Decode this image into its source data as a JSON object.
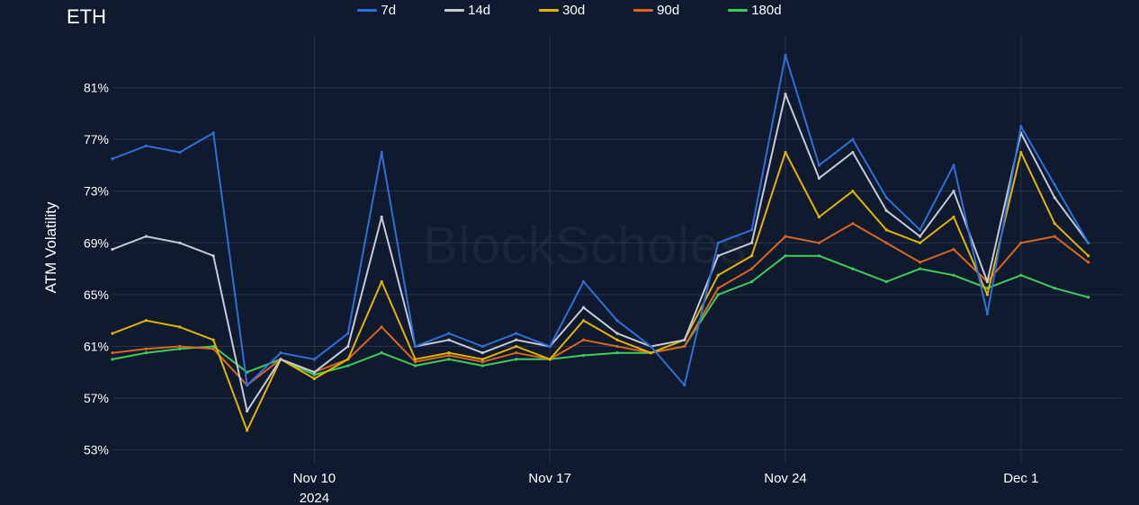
{
  "chart_data": {
    "type": "line",
    "title": "ETH",
    "ylabel": "ATM Volatility",
    "xlabel": "",
    "watermark": "BlockScholes",
    "ylim": [
      52,
      85
    ],
    "yticks": [
      53,
      57,
      61,
      65,
      69,
      73,
      77,
      81
    ],
    "ytick_labels": [
      "53%",
      "57%",
      "61%",
      "65%",
      "69%",
      "73%",
      "77%",
      "81%"
    ],
    "xlim": [
      "2024-11-04",
      "2024-12-04"
    ],
    "xticks": [
      "2024-11-10",
      "2024-11-17",
      "2024-11-24",
      "2024-12-01"
    ],
    "xtick_labels": [
      "Nov 10",
      "Nov 17",
      "Nov 24",
      "Dec 1"
    ],
    "xtick_year_label": "2024",
    "grid": true,
    "legend_position": "top-center",
    "series": [
      {
        "name": "7d",
        "color": "#2f6fd9",
        "x": [
          "2024-11-04",
          "2024-11-05",
          "2024-11-06",
          "2024-11-07",
          "2024-11-08",
          "2024-11-09",
          "2024-11-10",
          "2024-11-11",
          "2024-11-12",
          "2024-11-13",
          "2024-11-14",
          "2024-11-15",
          "2024-11-16",
          "2024-11-17",
          "2024-11-18",
          "2024-11-19",
          "2024-11-20",
          "2024-11-21",
          "2024-11-22",
          "2024-11-23",
          "2024-11-24",
          "2024-11-25",
          "2024-11-26",
          "2024-11-27",
          "2024-11-28",
          "2024-11-29",
          "2024-11-30",
          "2024-12-01",
          "2024-12-02",
          "2024-12-03"
        ],
        "values": [
          75.5,
          76.5,
          76.0,
          77.5,
          58.0,
          60.5,
          60.0,
          62.0,
          76.0,
          61.0,
          62.0,
          61.0,
          62.0,
          61.0,
          66.0,
          63.0,
          61.0,
          58.0,
          69.0,
          70.0,
          83.5,
          75.0,
          77.0,
          72.5,
          70.0,
          75.0,
          63.5,
          78.0,
          73.5,
          69.0
        ]
      },
      {
        "name": "14d",
        "color": "#c5cbd6",
        "x": [
          "2024-11-04",
          "2024-11-05",
          "2024-11-06",
          "2024-11-07",
          "2024-11-08",
          "2024-11-09",
          "2024-11-10",
          "2024-11-11",
          "2024-11-12",
          "2024-11-13",
          "2024-11-14",
          "2024-11-15",
          "2024-11-16",
          "2024-11-17",
          "2024-11-18",
          "2024-11-19",
          "2024-11-20",
          "2024-11-21",
          "2024-11-22",
          "2024-11-23",
          "2024-11-24",
          "2024-11-25",
          "2024-11-26",
          "2024-11-27",
          "2024-11-28",
          "2024-11-29",
          "2024-11-30",
          "2024-12-01",
          "2024-12-02",
          "2024-12-03"
        ],
        "values": [
          68.5,
          69.5,
          69.0,
          68.0,
          56.0,
          60.0,
          59.0,
          61.0,
          71.0,
          61.0,
          61.5,
          60.5,
          61.5,
          61.0,
          64.0,
          62.0,
          61.0,
          61.5,
          68.0,
          69.0,
          80.5,
          74.0,
          76.0,
          71.5,
          69.5,
          73.0,
          66.0,
          77.5,
          72.5,
          69.0
        ]
      },
      {
        "name": "30d",
        "color": "#e6b400",
        "x": [
          "2024-11-04",
          "2024-11-05",
          "2024-11-06",
          "2024-11-07",
          "2024-11-08",
          "2024-11-09",
          "2024-11-10",
          "2024-11-11",
          "2024-11-12",
          "2024-11-13",
          "2024-11-14",
          "2024-11-15",
          "2024-11-16",
          "2024-11-17",
          "2024-11-18",
          "2024-11-19",
          "2024-11-20",
          "2024-11-21",
          "2024-11-22",
          "2024-11-23",
          "2024-11-24",
          "2024-11-25",
          "2024-11-26",
          "2024-11-27",
          "2024-11-28",
          "2024-11-29",
          "2024-11-30",
          "2024-12-01",
          "2024-12-02",
          "2024-12-03"
        ],
        "values": [
          62.0,
          63.0,
          62.5,
          61.5,
          54.5,
          60.0,
          58.5,
          60.0,
          66.0,
          60.0,
          60.5,
          60.0,
          61.0,
          60.0,
          63.0,
          61.5,
          60.5,
          61.5,
          66.5,
          68.0,
          76.0,
          71.0,
          73.0,
          70.0,
          69.0,
          71.0,
          65.0,
          76.0,
          70.5,
          68.0
        ]
      },
      {
        "name": "90d",
        "color": "#d9661f",
        "x": [
          "2024-11-04",
          "2024-11-05",
          "2024-11-06",
          "2024-11-07",
          "2024-11-08",
          "2024-11-09",
          "2024-11-10",
          "2024-11-11",
          "2024-11-12",
          "2024-11-13",
          "2024-11-14",
          "2024-11-15",
          "2024-11-16",
          "2024-11-17",
          "2024-11-18",
          "2024-11-19",
          "2024-11-20",
          "2024-11-21",
          "2024-11-22",
          "2024-11-23",
          "2024-11-24",
          "2024-11-25",
          "2024-11-26",
          "2024-11-27",
          "2024-11-28",
          "2024-11-29",
          "2024-11-30",
          "2024-12-01",
          "2024-12-02",
          "2024-12-03"
        ],
        "values": [
          60.5,
          60.8,
          61.0,
          60.8,
          58.0,
          60.0,
          59.0,
          60.0,
          62.5,
          59.8,
          60.3,
          59.8,
          60.5,
          60.0,
          61.5,
          61.0,
          60.5,
          61.0,
          65.5,
          67.0,
          69.5,
          69.0,
          70.5,
          69.0,
          67.5,
          68.5,
          66.0,
          69.0,
          69.5,
          67.5
        ]
      },
      {
        "name": "180d",
        "color": "#3ccf57",
        "x": [
          "2024-11-04",
          "2024-11-05",
          "2024-11-06",
          "2024-11-07",
          "2024-11-08",
          "2024-11-09",
          "2024-11-10",
          "2024-11-11",
          "2024-11-12",
          "2024-11-13",
          "2024-11-14",
          "2024-11-15",
          "2024-11-16",
          "2024-11-17",
          "2024-11-18",
          "2024-11-19",
          "2024-11-20",
          "2024-11-21",
          "2024-11-22",
          "2024-11-23",
          "2024-11-24",
          "2024-11-25",
          "2024-11-26",
          "2024-11-27",
          "2024-11-28",
          "2024-11-29",
          "2024-11-30",
          "2024-12-01",
          "2024-12-02",
          "2024-12-03"
        ],
        "values": [
          60.0,
          60.5,
          60.8,
          61.0,
          59.0,
          60.0,
          58.8,
          59.5,
          60.5,
          59.5,
          60.0,
          59.5,
          60.0,
          60.0,
          60.3,
          60.5,
          60.5,
          61.0,
          65.0,
          66.0,
          68.0,
          68.0,
          67.0,
          66.0,
          67.0,
          66.5,
          65.5,
          66.5,
          65.5,
          64.8
        ]
      }
    ]
  }
}
